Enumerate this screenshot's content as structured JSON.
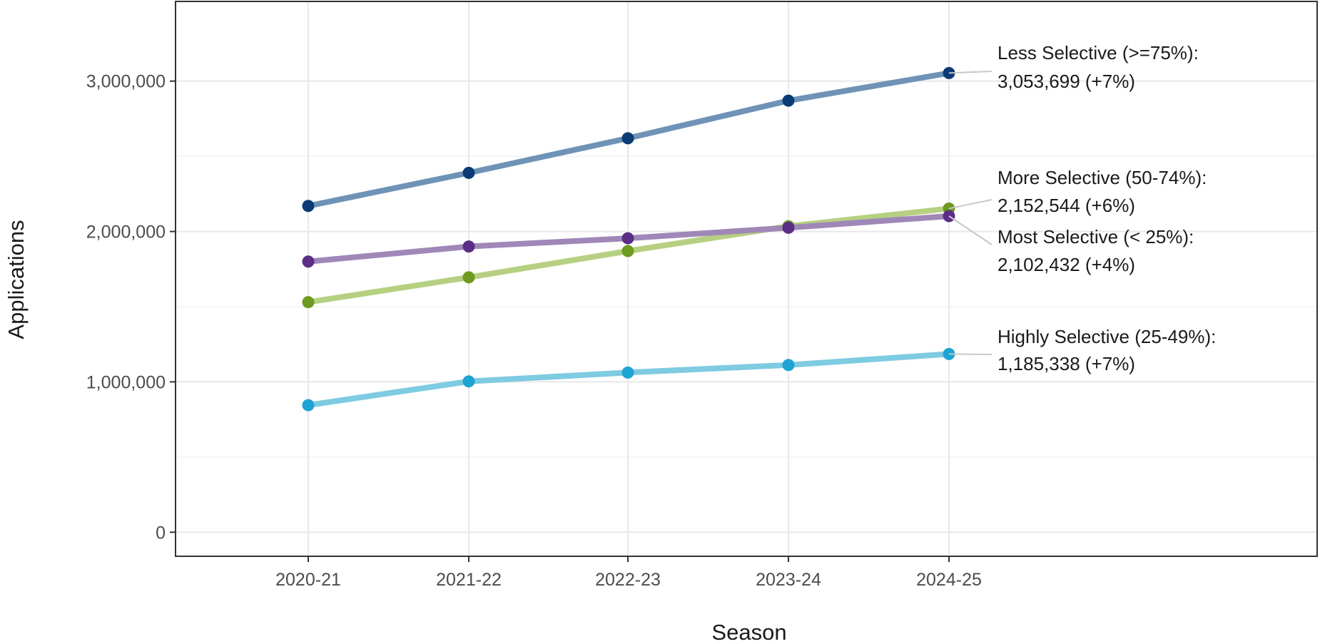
{
  "chart_data": {
    "type": "line",
    "title": "",
    "xlabel": "Season",
    "ylabel": "Applications",
    "categories": [
      "2020-21",
      "2021-22",
      "2022-23",
      "2023-24",
      "2024-25"
    ],
    "ylim": [
      -160000,
      3530000
    ],
    "yticks": [
      0,
      1000000,
      2000000,
      3000000
    ],
    "ytick_labels": [
      "0",
      "1,000,000",
      "2,000,000",
      "3,000,000"
    ],
    "grid": true,
    "series": [
      {
        "name": "Less Selective (>=75%)",
        "values": [
          2170000,
          2390000,
          2620000,
          2870000,
          3053699
        ],
        "line_color": "#6e93b6",
        "point_color": "#0b3b74",
        "label_line1": "Less Selective (>=75%):",
        "label_line2": "3,053,699 (+7%)"
      },
      {
        "name": "More Selective (50-74%)",
        "values": [
          1530000,
          1695000,
          1870000,
          2035000,
          2152544
        ],
        "line_color": "#b6d081",
        "point_color": "#6d9a1f",
        "label_line1": "More Selective (50-74%):",
        "label_line2": "2,152,544 (+6%)"
      },
      {
        "name": "Most Selective (< 25%)",
        "values": [
          1800000,
          1900000,
          1955000,
          2025000,
          2102432
        ],
        "line_color": "#9f88b8",
        "point_color": "#5a2e86",
        "label_line1": "Most Selective (< 25%):",
        "label_line2": "2,102,432 (+4%)"
      },
      {
        "name": "Highly Selective (25-49%)",
        "values": [
          845000,
          1003000,
          1062000,
          1112000,
          1185338
        ],
        "line_color": "#7ecbe2",
        "point_color": "#1ea4d3",
        "label_line1": "Highly Selective (25-49%):",
        "label_line2": "1,185,338 (+7%)"
      }
    ]
  }
}
